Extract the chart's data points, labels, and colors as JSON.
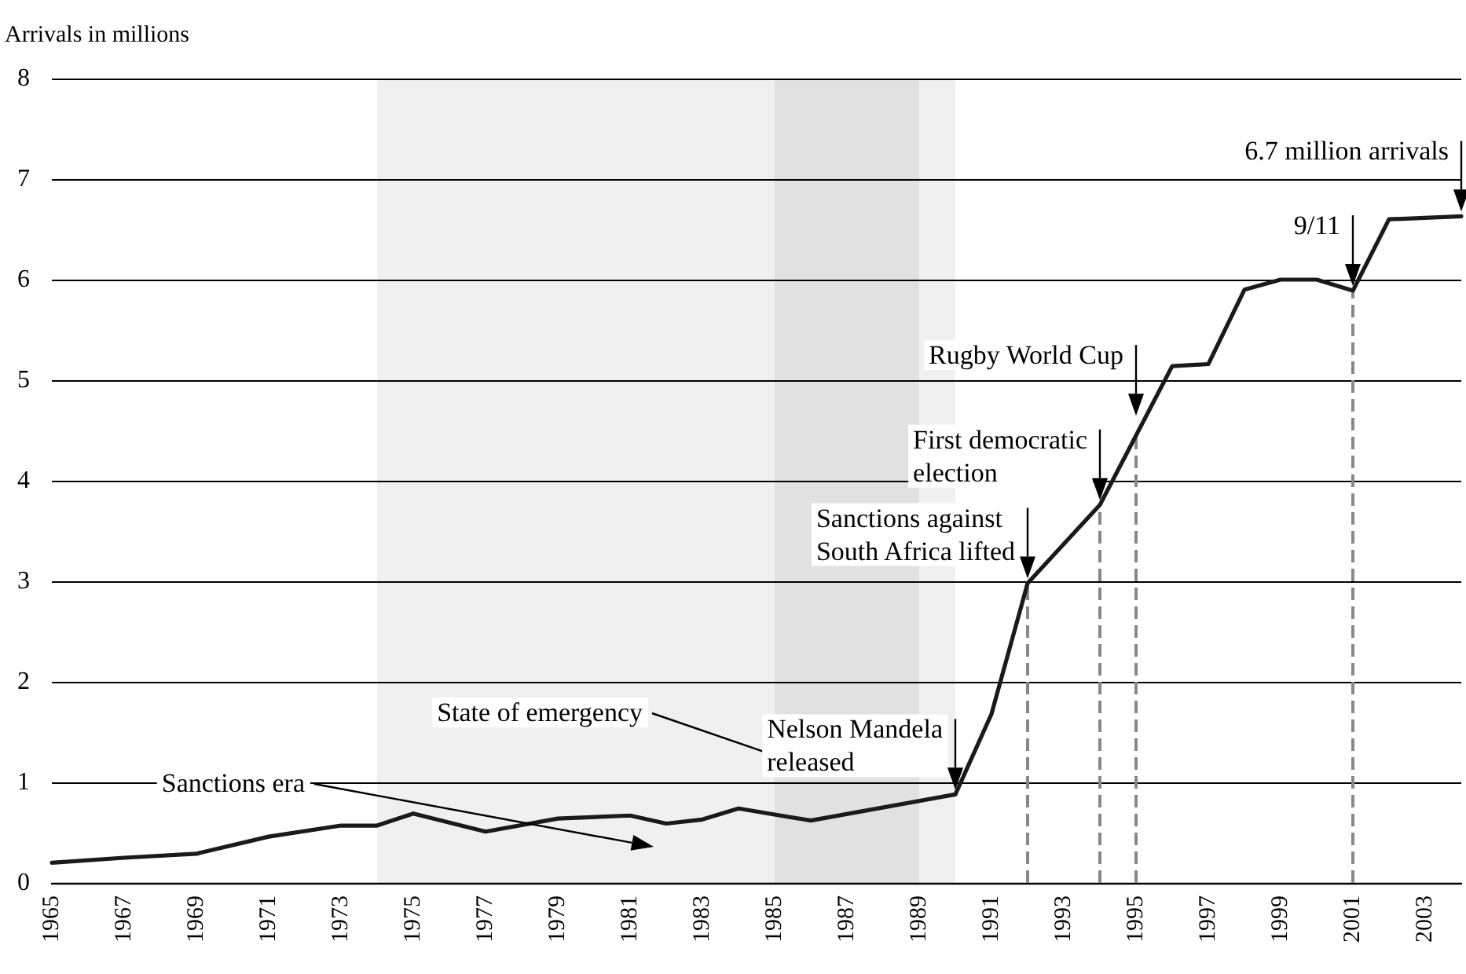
{
  "chart_data": {
    "type": "line",
    "ylabel": "Arrivals in millions",
    "x": [
      1965,
      1967,
      1969,
      1971,
      1973,
      1974,
      1975,
      1977,
      1979,
      1981,
      1982,
      1983,
      1984,
      1986,
      1990,
      1991,
      1992,
      1994,
      1996,
      1997,
      1998,
      1999,
      2000,
      2001,
      2002,
      2004
    ],
    "series": [
      {
        "color": "#1a1a1a",
        "values": [
          0.2,
          0.25,
          0.29,
          0.46,
          0.57,
          0.57,
          0.69,
          0.51,
          0.64,
          0.67,
          0.59,
          0.63,
          0.74,
          0.62,
          0.88,
          1.68,
          2.98,
          3.76,
          5.14,
          5.16,
          5.9,
          6.0,
          6.0,
          5.89,
          6.6,
          6.63
        ]
      }
    ],
    "xlim": [
      1965,
      2004
    ],
    "xticks": [
      1965,
      1967,
      1969,
      1971,
      1973,
      1975,
      1977,
      1979,
      1981,
      1983,
      1985,
      1987,
      1989,
      1991,
      1993,
      1995,
      1997,
      1999,
      2001,
      2003
    ],
    "ylim": [
      0,
      8
    ],
    "yticks": [
      0,
      1,
      2,
      3,
      4,
      5,
      6,
      7,
      8
    ],
    "grid": "y",
    "marker": "none",
    "line_style": "solid",
    "ref_lines": [
      {
        "axis": "x",
        "value": 1992,
        "color": "#888888",
        "line_style": "dashed"
      },
      {
        "axis": "x",
        "value": 1994,
        "color": "#888888",
        "line_style": "dashed"
      },
      {
        "axis": "x",
        "value": 1995,
        "color": "#888888",
        "line_style": "dashed"
      },
      {
        "axis": "x",
        "value": 2001,
        "color": "#888888",
        "line_style": "dashed"
      }
    ],
    "bands": [
      {
        "axis": "x",
        "from": 1974,
        "to": 1990,
        "label": "Sanctions era"
      },
      {
        "axis": "x",
        "from": 1985,
        "to": 1989,
        "label": "State of emergency"
      }
    ],
    "annotations": [
      {
        "text": "Nelson Mandela released",
        "x": 1990,
        "y": 0.88
      },
      {
        "text": "Sanctions against South Africa lifted",
        "x": 1992,
        "y": 2.98
      },
      {
        "text": "First democratic election",
        "x": 1994,
        "y": 3.76
      },
      {
        "text": "Rugby World Cup",
        "x": 1995,
        "y": 4.6
      },
      {
        "text": "9/11",
        "x": 2001,
        "y": 5.89
      },
      {
        "text": "6.7 million arrivals",
        "x": 2004,
        "y": 6.63
      }
    ]
  }
}
